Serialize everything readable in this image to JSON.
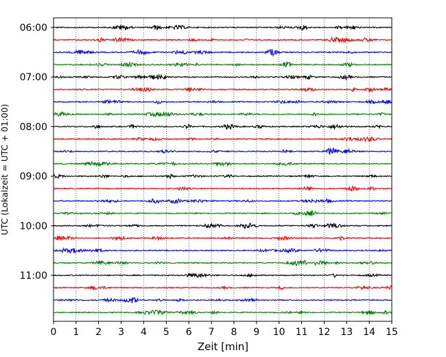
{
  "chart_data": {
    "type": "line",
    "title": "",
    "xlabel": "Zeit  [min]",
    "ylabel": "UTC (Lokalzeit = UTC + 01:00)",
    "xlim": [
      0,
      15
    ],
    "x_ticks": [
      "0",
      "1",
      "2",
      "3",
      "4",
      "5",
      "6",
      "7",
      "8",
      "9",
      "10",
      "11",
      "12",
      "13",
      "14",
      "15"
    ],
    "y_tick_labels": [
      "06:00",
      "07:00",
      "08:00",
      "09:00",
      "10:00",
      "11:00"
    ],
    "grid": "vertical dotted",
    "trace_start": "06:00",
    "trace_interval_minutes": 15,
    "trace_count": 24,
    "trace_color_cycle": [
      "#000000",
      "#ff0000",
      "#0000ff",
      "#008000"
    ]
  }
}
